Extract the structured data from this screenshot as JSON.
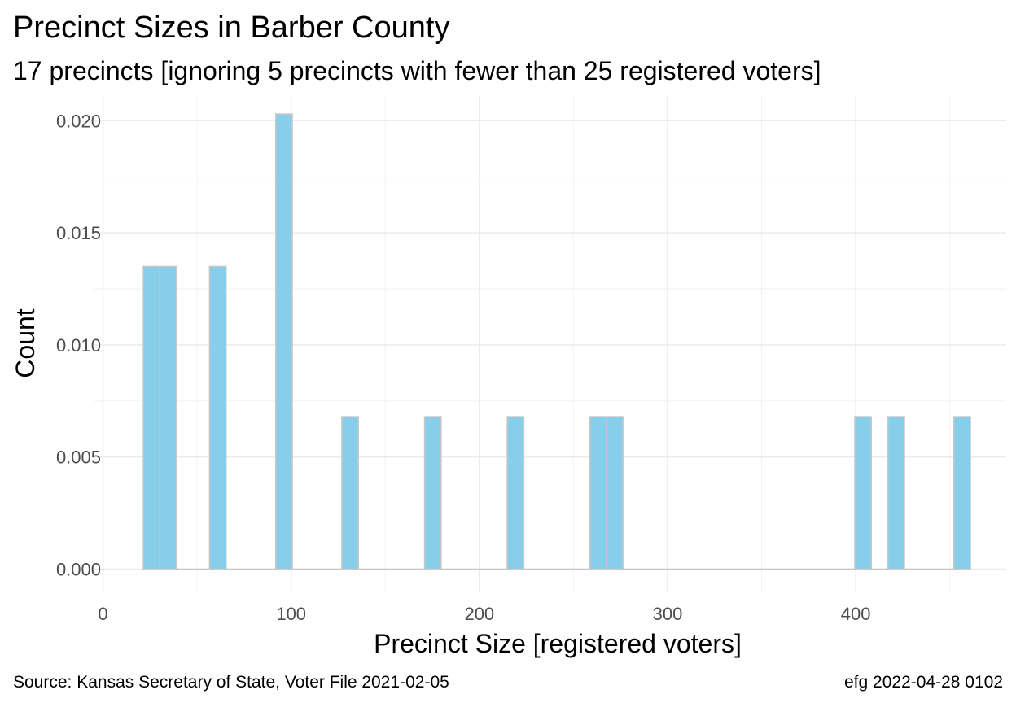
{
  "chart_data": {
    "type": "bar",
    "title": "Precinct Sizes in Barber County",
    "subtitle": "17 precincts [ignoring 5 precincts with fewer than 25 registered voters]",
    "xlabel": "Precinct Size [registered voters]",
    "ylabel": "Count",
    "xlim": [
      -5,
      480
    ],
    "ylim": [
      -0.001,
      0.0211
    ],
    "x_ticks": [
      0,
      100,
      200,
      300,
      400
    ],
    "y_ticks": [
      0.0,
      0.005,
      0.01,
      0.015,
      0.02
    ],
    "y_tick_labels": [
      "0.000",
      "0.005",
      "0.010",
      "0.015",
      "0.020"
    ],
    "grid": true,
    "bar_color": "#87CEEB",
    "bar_outline_color": "#C8C8C8",
    "bars": [
      {
        "x_start": 21.4,
        "x_end": 30.2,
        "value": 0.0135
      },
      {
        "x_start": 30.2,
        "x_end": 39.0,
        "value": 0.0135
      },
      {
        "x_start": 56.6,
        "x_end": 65.4,
        "value": 0.0135
      },
      {
        "x_start": 91.8,
        "x_end": 100.6,
        "value": 0.0203
      },
      {
        "x_start": 126.9,
        "x_end": 135.7,
        "value": 0.0068
      },
      {
        "x_start": 170.9,
        "x_end": 179.7,
        "value": 0.0068
      },
      {
        "x_start": 214.8,
        "x_end": 223.6,
        "value": 0.0068
      },
      {
        "x_start": 258.8,
        "x_end": 267.6,
        "value": 0.0068
      },
      {
        "x_start": 267.6,
        "x_end": 276.3,
        "value": 0.0068
      },
      {
        "x_start": 399.5,
        "x_end": 408.3,
        "value": 0.0068
      },
      {
        "x_start": 417.1,
        "x_end": 425.9,
        "value": 0.0068
      },
      {
        "x_start": 452.2,
        "x_end": 461.0,
        "value": 0.0068
      }
    ]
  },
  "footer": {
    "source": "Source:  Kansas Secretary of State, Voter File  2021-02-05",
    "stamp": "efg 2022-04-28 0102"
  }
}
